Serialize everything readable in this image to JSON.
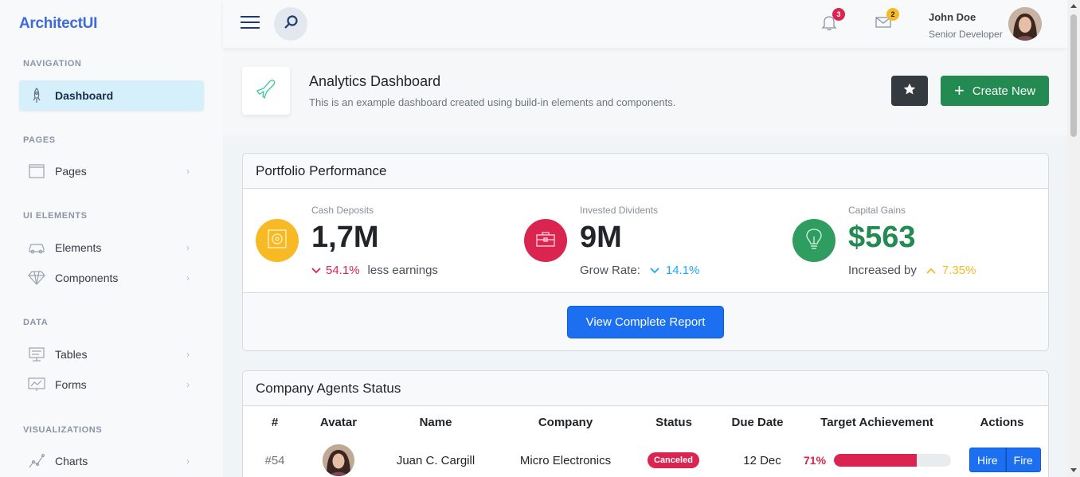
{
  "app": {
    "logo": "ArchitectUI"
  },
  "sidebar": {
    "sections": [
      {
        "title": "NAVIGATION"
      },
      {
        "title": "PAGES"
      },
      {
        "title": "UI ELEMENTS"
      },
      {
        "title": "DATA"
      },
      {
        "title": "VISUALIZATIONS"
      }
    ],
    "items": [
      {
        "label": "Dashboard",
        "icon": "rocket-icon",
        "active": true
      },
      {
        "label": "Pages",
        "icon": "browser-icon"
      },
      {
        "label": "Elements",
        "icon": "car-icon"
      },
      {
        "label": "Components",
        "icon": "diamond-icon"
      },
      {
        "label": "Tables",
        "icon": "display-icon"
      },
      {
        "label": "Forms",
        "icon": "chart-board-icon"
      },
      {
        "label": "Charts",
        "icon": "graph-icon"
      }
    ]
  },
  "header": {
    "notifications_count": "3",
    "messages_count": "2",
    "user_name": "John Doe",
    "user_role": "Senior Developer"
  },
  "page": {
    "title": "Analytics Dashboard",
    "subtitle": "This is an example dashboard created using build-in elements and components.",
    "create_label": "Create New"
  },
  "portfolio": {
    "title": "Portfolio Performance",
    "metrics": [
      {
        "label": "Cash Deposits",
        "value": "1,7M",
        "trend_pct": "54.1%",
        "trend_text": "less earnings",
        "color": "#f7b924"
      },
      {
        "label": "Invested Dividents",
        "value": "9M",
        "prefix_text": "Grow Rate:",
        "trend_pct": "14.1%",
        "color": "#d92550"
      },
      {
        "label": "Capital Gains",
        "value": "$563",
        "prefix_text": "Increased by",
        "trend_pct": "7.35%",
        "color": "#3ac47d"
      }
    ],
    "report_label": "View Complete Report"
  },
  "agents": {
    "title": "Company Agents Status",
    "columns": [
      "#",
      "Avatar",
      "Name",
      "Company",
      "Status",
      "Due Date",
      "Target Achievement",
      "Actions"
    ],
    "rows": [
      {
        "id": "#54",
        "name": "Juan C. Cargill",
        "company": "Micro Electronics",
        "status": "Canceled",
        "due": "12 Dec",
        "target_pct_label": "71%",
        "target": 0.71,
        "hire_label": "Hire",
        "fire_label": "Fire"
      }
    ]
  }
}
